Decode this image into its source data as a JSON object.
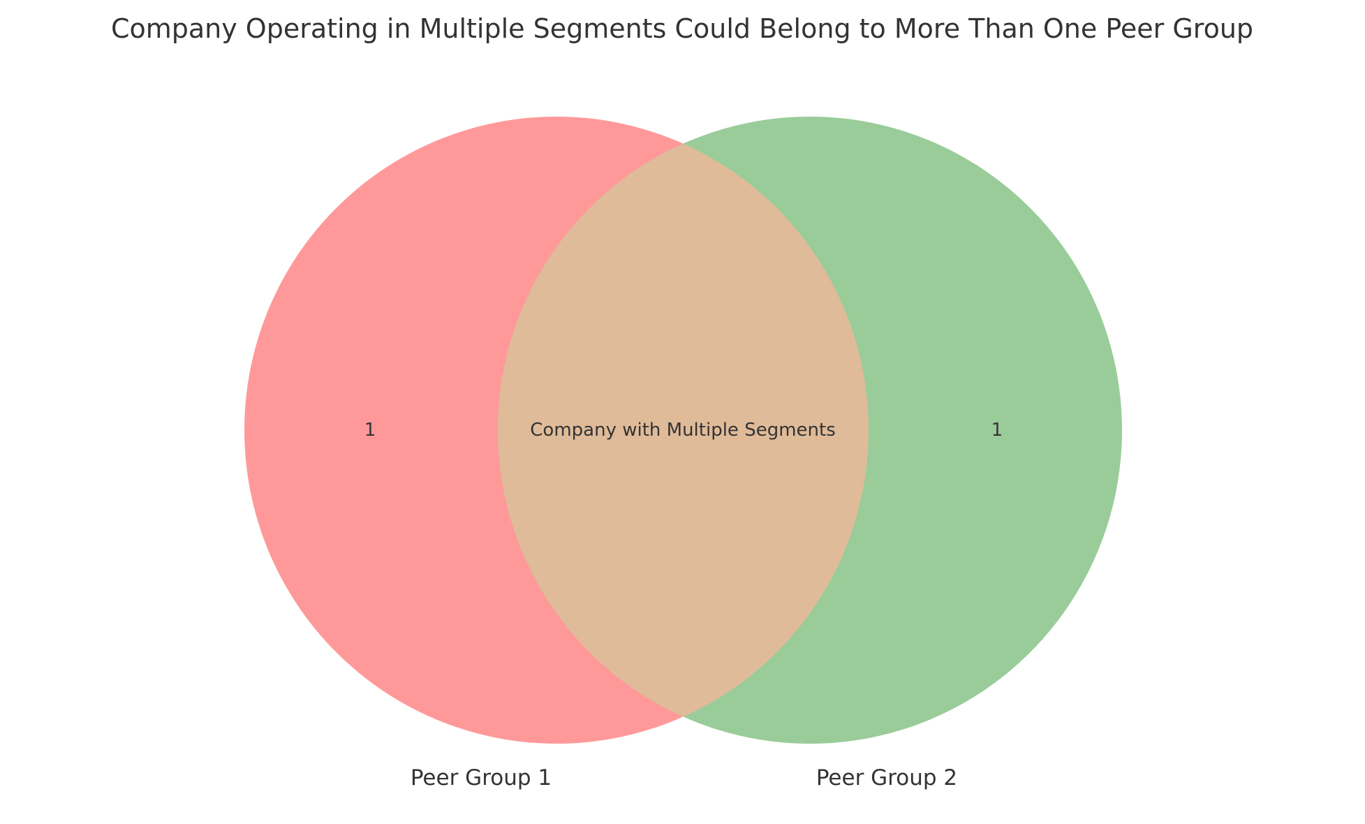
{
  "title": "Company Operating in Multiple Segments Could Belong to More Than One Peer Group",
  "colors": {
    "group1": "#ff9999",
    "group2": "#99cc99",
    "overlap": "#e0bb99",
    "text": "#333333"
  },
  "sets": [
    {
      "label": "Peer Group 1",
      "only_count": "1"
    },
    {
      "label": "Peer Group 2",
      "only_count": "1"
    }
  ],
  "intersection": {
    "label": "Company with Multiple Segments"
  }
}
